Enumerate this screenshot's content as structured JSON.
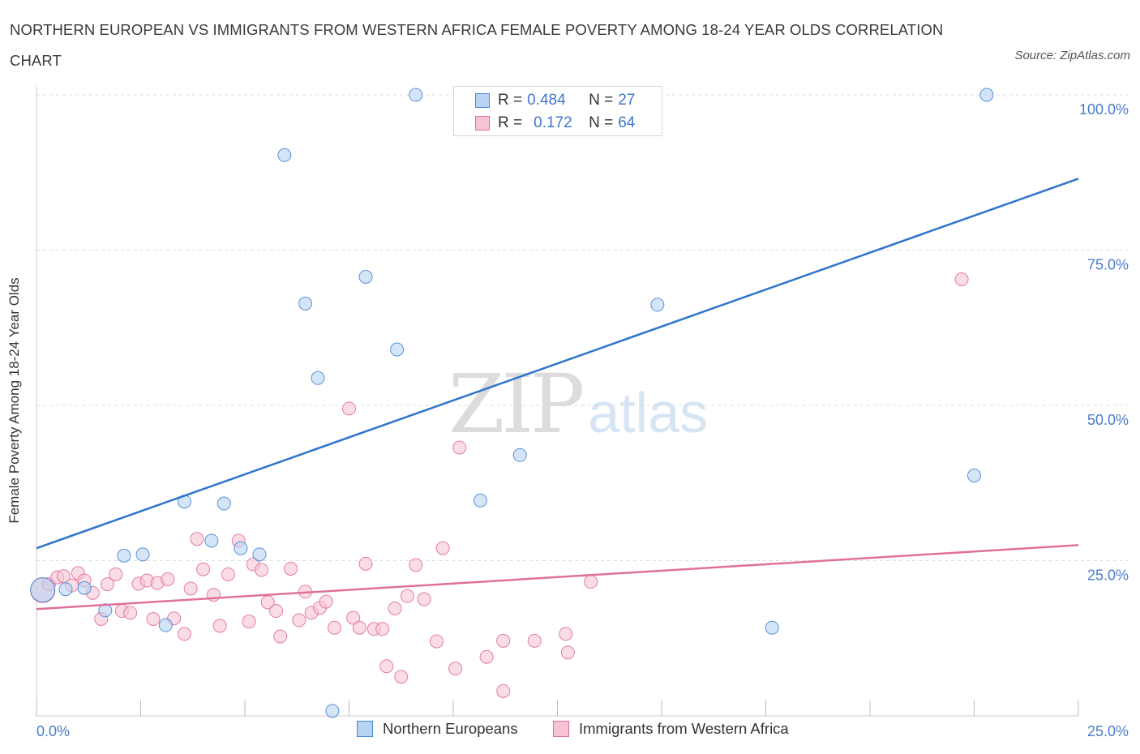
{
  "chart_data": {
    "type": "scatter",
    "title": "NORTHERN EUROPEAN VS IMMIGRANTS FROM WESTERN AFRICA FEMALE POVERTY AMONG 18-24 YEAR OLDS CORRELATION CHART",
    "source": "Source: ZipAtlas.com",
    "ylabel": "Female Poverty Among 18-24 Year Olds",
    "xlabel": "",
    "xlim": [
      0,
      25
    ],
    "ylim": [
      0,
      100
    ],
    "x_tick_labels": [
      "0.0%",
      "25.0%"
    ],
    "y_tick_labels": [
      "100.0%",
      "75.0%",
      "50.0%",
      "25.0%"
    ],
    "y_tick_values": [
      100,
      75,
      50,
      25
    ],
    "grid": "horizontal dashed",
    "legend_placement": "bottom",
    "watermark": [
      "ZIP",
      "atlas"
    ],
    "colors": {
      "blue": "#4a86d4",
      "blue_fill": "#b9d3f3",
      "pink": "#e0709a",
      "pink_fill": "#f7c4d5",
      "tick_text": "#4a7cc9"
    },
    "stats": [
      {
        "r_label": "R = ",
        "r_value": "0.484",
        "n_label": "N = ",
        "n_value": "27"
      },
      {
        "r_label": "R = ",
        "r_value": "0.172",
        "n_label": "N = ",
        "n_value": "64"
      }
    ],
    "series": [
      {
        "name": "Northern Europeans",
        "color": "#4a86d4",
        "fill": "#b9d3f3",
        "trend": {
          "x": [
            0,
            25
          ],
          "y": [
            27.0,
            86.5
          ]
        },
        "points": [
          {
            "x": 0.15,
            "y": 20.3,
            "big": true
          },
          {
            "x": 0.7,
            "y": 20.4
          },
          {
            "x": 1.15,
            "y": 20.6
          },
          {
            "x": 1.65,
            "y": 17.0
          },
          {
            "x": 2.1,
            "y": 25.8
          },
          {
            "x": 2.55,
            "y": 26.0
          },
          {
            "x": 3.1,
            "y": 14.6
          },
          {
            "x": 3.55,
            "y": 34.5
          },
          {
            "x": 4.2,
            "y": 28.2
          },
          {
            "x": 4.5,
            "y": 34.2
          },
          {
            "x": 4.9,
            "y": 27.0
          },
          {
            "x": 5.35,
            "y": 26.0
          },
          {
            "x": 5.95,
            "y": 90.3
          },
          {
            "x": 6.45,
            "y": 66.4
          },
          {
            "x": 6.75,
            "y": 54.4
          },
          {
            "x": 7.1,
            "y": 0.8
          },
          {
            "x": 7.9,
            "y": 70.7
          },
          {
            "x": 8.65,
            "y": 59.0
          },
          {
            "x": 9.1,
            "y": 100.0
          },
          {
            "x": 10.65,
            "y": 34.7
          },
          {
            "x": 11.6,
            "y": 42.0
          },
          {
            "x": 12.2,
            "y": 100.0
          },
          {
            "x": 13.6,
            "y": 100.0
          },
          {
            "x": 14.9,
            "y": 66.2
          },
          {
            "x": 17.65,
            "y": 14.2
          },
          {
            "x": 22.5,
            "y": 38.7
          },
          {
            "x": 22.8,
            "y": 100.0
          }
        ]
      },
      {
        "name": "Immigrants from Western Africa",
        "color": "#e0709a",
        "fill": "#f7c4d5",
        "trend": {
          "x": [
            0,
            25
          ],
          "y": [
            17.2,
            27.5
          ]
        },
        "points": [
          {
            "x": 0.15,
            "y": 20.2,
            "big": true
          },
          {
            "x": 0.3,
            "y": 21.2
          },
          {
            "x": 0.5,
            "y": 22.3
          },
          {
            "x": 0.65,
            "y": 22.5
          },
          {
            "x": 0.85,
            "y": 21.0
          },
          {
            "x": 1.0,
            "y": 23.0
          },
          {
            "x": 1.15,
            "y": 21.8
          },
          {
            "x": 1.35,
            "y": 19.8
          },
          {
            "x": 1.55,
            "y": 15.6
          },
          {
            "x": 1.7,
            "y": 21.2
          },
          {
            "x": 1.9,
            "y": 22.8
          },
          {
            "x": 2.05,
            "y": 16.9
          },
          {
            "x": 2.25,
            "y": 16.6
          },
          {
            "x": 2.45,
            "y": 21.3
          },
          {
            "x": 2.65,
            "y": 21.8
          },
          {
            "x": 2.8,
            "y": 15.6
          },
          {
            "x": 2.9,
            "y": 21.4
          },
          {
            "x": 3.15,
            "y": 22.0
          },
          {
            "x": 3.3,
            "y": 15.7
          },
          {
            "x": 3.55,
            "y": 13.2
          },
          {
            "x": 3.7,
            "y": 20.5
          },
          {
            "x": 3.85,
            "y": 28.5
          },
          {
            "x": 4.0,
            "y": 23.6
          },
          {
            "x": 4.25,
            "y": 19.5
          },
          {
            "x": 4.4,
            "y": 14.5
          },
          {
            "x": 4.6,
            "y": 22.8
          },
          {
            "x": 4.85,
            "y": 28.2
          },
          {
            "x": 5.1,
            "y": 15.2
          },
          {
            "x": 5.2,
            "y": 24.4
          },
          {
            "x": 5.4,
            "y": 23.5
          },
          {
            "x": 5.55,
            "y": 18.3
          },
          {
            "x": 5.75,
            "y": 16.9
          },
          {
            "x": 5.85,
            "y": 12.8
          },
          {
            "x": 6.1,
            "y": 23.7
          },
          {
            "x": 6.3,
            "y": 15.4
          },
          {
            "x": 6.45,
            "y": 20.0
          },
          {
            "x": 6.6,
            "y": 16.6
          },
          {
            "x": 6.8,
            "y": 17.4
          },
          {
            "x": 6.95,
            "y": 18.4
          },
          {
            "x": 7.15,
            "y": 14.2
          },
          {
            "x": 7.5,
            "y": 49.5
          },
          {
            "x": 7.6,
            "y": 15.8
          },
          {
            "x": 7.75,
            "y": 14.2
          },
          {
            "x": 7.9,
            "y": 24.5
          },
          {
            "x": 8.1,
            "y": 14.0
          },
          {
            "x": 8.3,
            "y": 14.0
          },
          {
            "x": 8.4,
            "y": 8.0
          },
          {
            "x": 8.6,
            "y": 17.3
          },
          {
            "x": 8.75,
            "y": 6.3
          },
          {
            "x": 8.9,
            "y": 19.3
          },
          {
            "x": 9.1,
            "y": 24.3
          },
          {
            "x": 9.3,
            "y": 18.8
          },
          {
            "x": 9.6,
            "y": 12.0
          },
          {
            "x": 9.75,
            "y": 27.0
          },
          {
            "x": 10.05,
            "y": 7.6
          },
          {
            "x": 10.15,
            "y": 43.2
          },
          {
            "x": 10.8,
            "y": 9.5
          },
          {
            "x": 11.2,
            "y": 4.0
          },
          {
            "x": 11.2,
            "y": 12.1
          },
          {
            "x": 11.95,
            "y": 12.1
          },
          {
            "x": 12.7,
            "y": 13.2
          },
          {
            "x": 12.75,
            "y": 10.2
          },
          {
            "x": 13.3,
            "y": 21.6
          },
          {
            "x": 22.2,
            "y": 70.3
          }
        ]
      }
    ]
  }
}
